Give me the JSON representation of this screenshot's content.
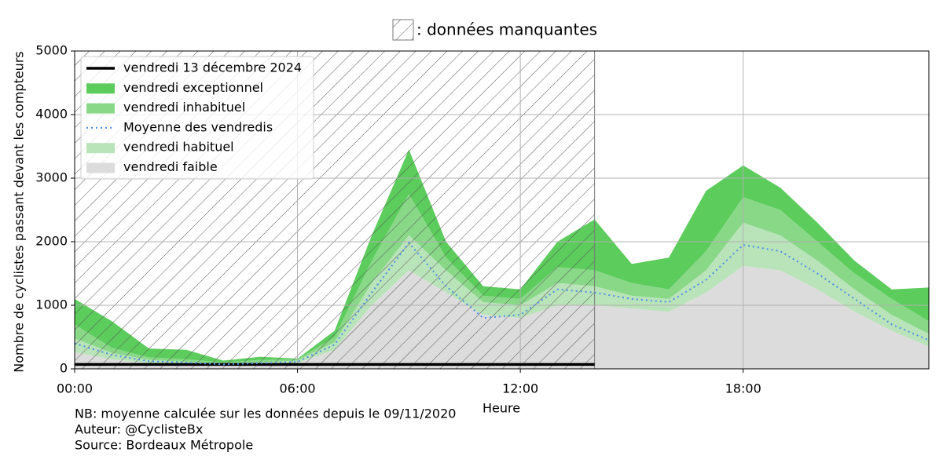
{
  "chart_data": {
    "type": "area",
    "missing_data": {
      "label": ": données manquantes",
      "xlim": [
        0,
        14
      ]
    },
    "xlabel": "Heure",
    "ylabel": "Nombre de cyclistes passant devant les compteurs",
    "x": [
      0,
      1,
      2,
      3,
      4,
      5,
      6,
      7,
      8,
      9,
      10,
      11,
      12,
      13,
      14,
      15,
      16,
      17,
      18,
      19,
      20,
      21,
      22,
      23
    ],
    "xlim": [
      0,
      23
    ],
    "xticks": [
      {
        "value": 0,
        "label": "00:00"
      },
      {
        "value": 6,
        "label": "06:00"
      },
      {
        "value": 12,
        "label": "12:00"
      },
      {
        "value": 18,
        "label": "18:00"
      }
    ],
    "ylim": [
      0,
      5000
    ],
    "yticks": [
      0,
      1000,
      2000,
      3000,
      4000,
      5000
    ],
    "grid": true,
    "legend": "upper left",
    "series": [
      {
        "name": "vendredi 13 décembre 2024",
        "type": "line",
        "linestyle": "solid",
        "color": "#000000",
        "values": [
          70,
          70,
          70,
          70,
          70,
          70,
          70,
          70,
          70,
          70,
          70,
          70,
          70,
          70,
          70,
          null,
          null,
          null,
          null,
          null,
          null,
          null,
          null,
          null
        ]
      },
      {
        "name": "vendredi exceptionnel",
        "type": "area",
        "color": "#5ccc5c",
        "values": [
          400,
          420,
          140,
          150,
          30,
          50,
          10,
          100,
          400,
          700,
          250,
          150,
          150,
          400,
          800,
          300,
          500,
          950,
          500,
          350,
          300,
          200,
          150,
          530
        ]
      },
      {
        "name": "vendredi inhabituel",
        "type": "area",
        "color": "#88d888",
        "values": [
          220,
          80,
          40,
          40,
          20,
          40,
          20,
          80,
          350,
          650,
          200,
          100,
          100,
          250,
          250,
          200,
          150,
          300,
          400,
          400,
          300,
          250,
          250,
          200
        ]
      },
      {
        "name": "Moyenne des vendredis",
        "type": "line",
        "linestyle": "dotted",
        "color": "#4a8ee8",
        "values": [
          400,
          220,
          120,
          100,
          70,
          90,
          110,
          380,
          1200,
          1980,
          1300,
          800,
          850,
          1250,
          1200,
          1100,
          1050,
          1400,
          1950,
          1850,
          1500,
          1100,
          700,
          450
        ]
      },
      {
        "name": "vendredi habituel",
        "type": "area",
        "color": "#b9e3b9",
        "values": [
          220,
          100,
          50,
          30,
          20,
          30,
          40,
          120,
          350,
          550,
          350,
          200,
          200,
          350,
          300,
          200,
          200,
          350,
          680,
          550,
          450,
          350,
          250,
          200
        ]
      },
      {
        "name": "vendredi faible",
        "type": "area",
        "color": "#dcdcdc",
        "values": [
          260,
          150,
          90,
          80,
          60,
          70,
          90,
          300,
          1000,
          1550,
          1200,
          850,
          800,
          1000,
          1000,
          950,
          900,
          1200,
          1620,
          1550,
          1250,
          900,
          600,
          350
        ]
      }
    ],
    "notes": [
      "NB: moyenne calculée sur les données depuis le 09/11/2020",
      "Auteur: @CyclisteBx",
      "Source: Bordeaux Métropole"
    ]
  }
}
